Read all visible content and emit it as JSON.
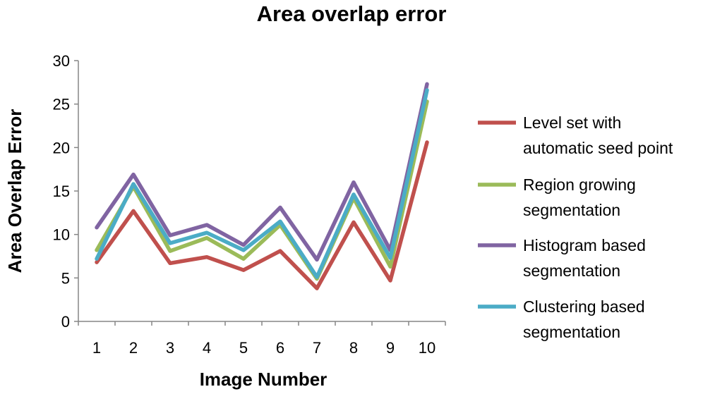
{
  "chart_data": {
    "type": "line",
    "title": "Area overlap error",
    "xlabel": "Image Number",
    "ylabel": "Area Overlap Error",
    "categories": [
      "1",
      "2",
      "3",
      "4",
      "5",
      "6",
      "7",
      "8",
      "9",
      "10"
    ],
    "ylim": [
      0,
      30
    ],
    "yticks": [
      "0",
      "5",
      "10",
      "15",
      "20",
      "25",
      "30"
    ],
    "grid": false,
    "legend_position": "right",
    "series": [
      {
        "name": "Level set with automatic seed point",
        "legend_lines": [
          "Level set with",
          "automatic seed point"
        ],
        "color": "#C0504D",
        "values": [
          6.8,
          12.7,
          6.7,
          7.4,
          5.9,
          8.1,
          3.8,
          11.4,
          4.7,
          20.6
        ]
      },
      {
        "name": "Region growing segmentation",
        "legend_lines": [
          "Region growing",
          "segmentation"
        ],
        "color": "#9BBB59",
        "values": [
          8.2,
          15.5,
          8.1,
          9.6,
          7.2,
          11.1,
          4.9,
          14.2,
          6.3,
          25.3
        ]
      },
      {
        "name": "Histogram based segmentation",
        "legend_lines": [
          "Histogram based",
          "segmentation"
        ],
        "color": "#8064A2",
        "values": [
          10.8,
          16.9,
          9.9,
          11.1,
          8.8,
          13.1,
          7.1,
          16.0,
          8.2,
          27.3
        ]
      },
      {
        "name": "Clustering based segmentation",
        "legend_lines": [
          "Clustering based",
          "segmentation"
        ],
        "color": "#4BACC6",
        "values": [
          7.2,
          15.8,
          9.0,
          10.2,
          8.2,
          11.5,
          5.1,
          14.6,
          7.3,
          26.6
        ]
      }
    ]
  }
}
